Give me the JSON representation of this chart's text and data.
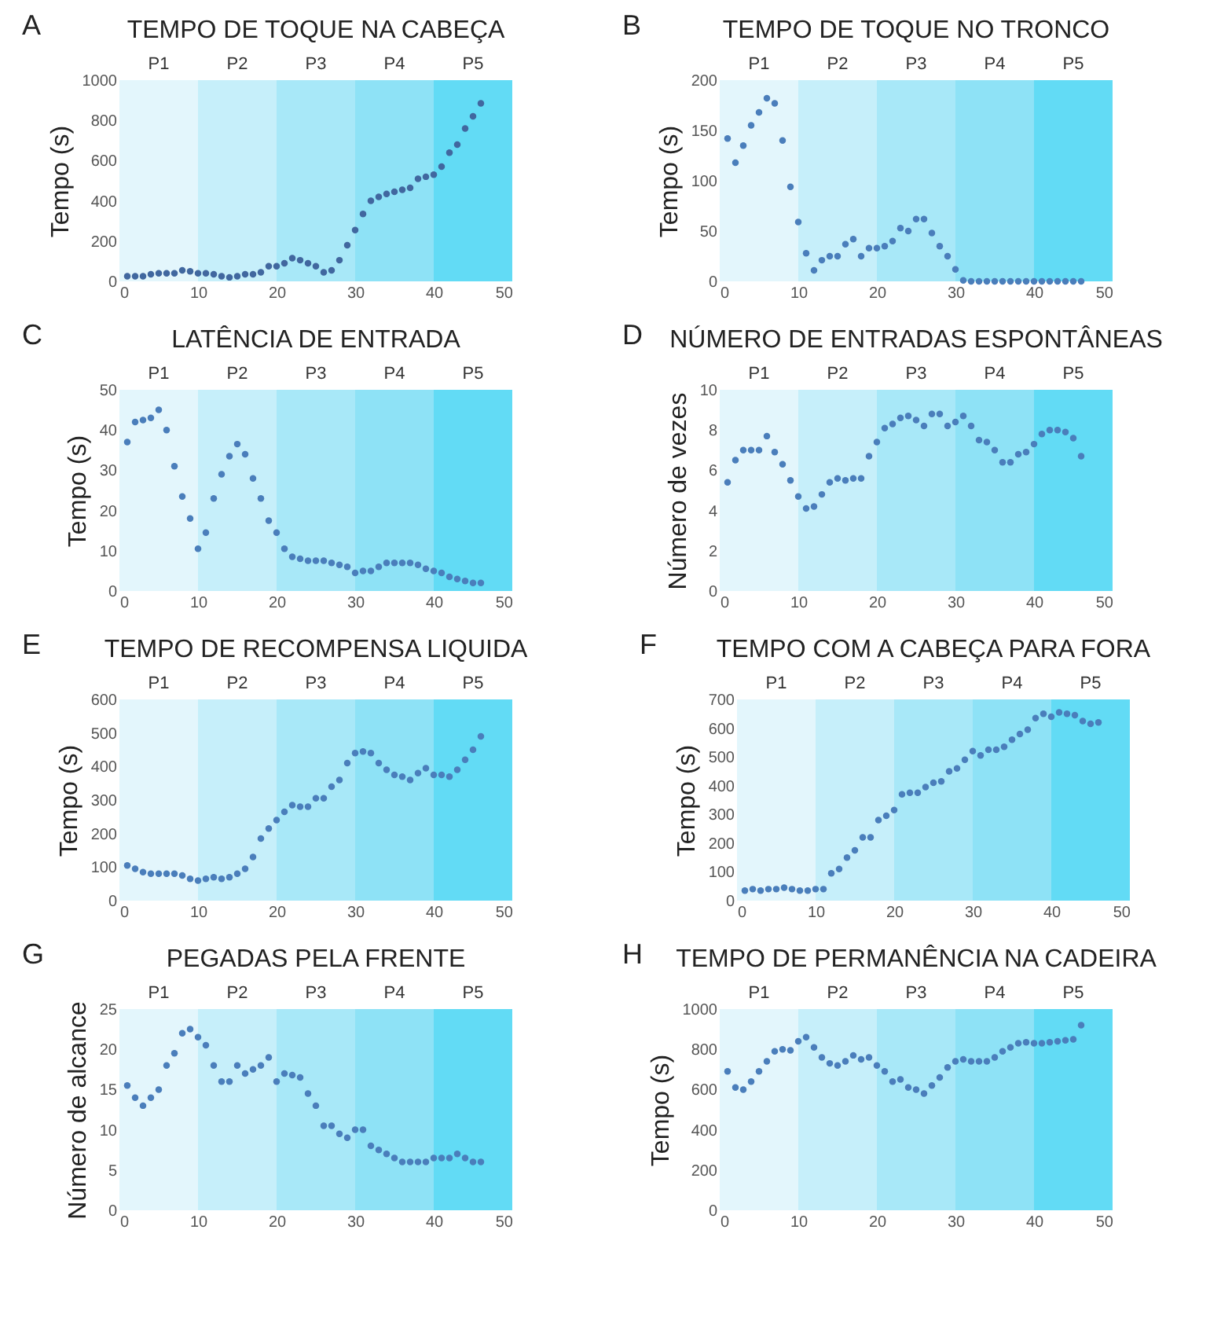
{
  "chart_data": [
    {
      "type": "scatter",
      "title": "TEMPO DE TOQUE NA CABEÇA",
      "ylabel": "Tempo (s)",
      "annotations": [
        "A"
      ],
      "marker": "circle",
      "x": [
        1,
        2,
        3,
        4,
        5,
        6,
        7,
        8,
        9,
        10,
        11,
        12,
        13,
        14,
        15,
        16,
        17,
        18,
        19,
        20,
        21,
        22,
        23,
        24,
        25,
        26,
        27,
        28,
        29,
        30,
        31,
        32,
        33,
        34,
        35,
        36,
        37,
        38,
        39,
        40,
        41,
        42,
        43,
        44,
        45,
        46
      ],
      "series": [
        {
          "color": "#41679f",
          "values": [
            25,
            25,
            25,
            35,
            40,
            40,
            40,
            55,
            50,
            40,
            40,
            35,
            25,
            20,
            25,
            35,
            35,
            45,
            75,
            75,
            90,
            115,
            105,
            90,
            75,
            45,
            55,
            105,
            180,
            255,
            335,
            400,
            420,
            435,
            445,
            455,
            465,
            510,
            520,
            530,
            570,
            640,
            680,
            760,
            820,
            885
          ]
        }
      ],
      "xlim": [
        0,
        50
      ],
      "xticks": [
        0,
        10,
        20,
        30,
        40,
        50
      ],
      "ylim": [
        0,
        1000
      ],
      "yticks": [
        0,
        200,
        400,
        600,
        800,
        1000
      ],
      "bands": [
        {
          "axis": "x",
          "from": 0,
          "to": 10,
          "label": "P1",
          "color": "#e3f6fc"
        },
        {
          "axis": "x",
          "from": 10,
          "to": 20,
          "label": "P2",
          "color": "#c6effa"
        },
        {
          "axis": "x",
          "from": 20,
          "to": 30,
          "label": "P3",
          "color": "#a8e8f8"
        },
        {
          "axis": "x",
          "from": 30,
          "to": 40,
          "label": "P4",
          "color": "#8ee2f6"
        },
        {
          "axis": "x",
          "from": 40,
          "to": 50,
          "label": "P5",
          "color": "#62dbf5"
        }
      ]
    },
    {
      "type": "scatter",
      "title": "TEMPO DE TOQUE NO TRONCO",
      "ylabel": "Tempo (s)",
      "annotations": [
        "B"
      ],
      "marker": "circle",
      "x": [
        1,
        2,
        3,
        4,
        5,
        6,
        7,
        8,
        9,
        10,
        11,
        12,
        13,
        14,
        15,
        16,
        17,
        18,
        19,
        20,
        21,
        22,
        23,
        24,
        25,
        26,
        27,
        28,
        29,
        30,
        31,
        32,
        33,
        34,
        35,
        36,
        37,
        38,
        39,
        40,
        41,
        42,
        43,
        44,
        45,
        46
      ],
      "series": [
        {
          "color": "#4a7ebb",
          "values": [
            142,
            118,
            135,
            155,
            168,
            182,
            177,
            140,
            94,
            59,
            28,
            11,
            21,
            25,
            25,
            37,
            42,
            25,
            33,
            33,
            35,
            40,
            53,
            50,
            62,
            62,
            48,
            35,
            25,
            12,
            1,
            0,
            0,
            0,
            0,
            0,
            0,
            0,
            0,
            0,
            0,
            0,
            0,
            0,
            0,
            0
          ]
        }
      ],
      "xlim": [
        0,
        50
      ],
      "xticks": [
        0,
        10,
        20,
        30,
        40,
        50
      ],
      "ylim": [
        0,
        200
      ],
      "yticks": [
        0,
        50,
        100,
        150,
        200
      ],
      "bands": [
        {
          "axis": "x",
          "from": 0,
          "to": 10,
          "label": "P1",
          "color": "#e3f6fc"
        },
        {
          "axis": "x",
          "from": 10,
          "to": 20,
          "label": "P2",
          "color": "#c6effa"
        },
        {
          "axis": "x",
          "from": 20,
          "to": 30,
          "label": "P3",
          "color": "#a8e8f8"
        },
        {
          "axis": "x",
          "from": 30,
          "to": 40,
          "label": "P4",
          "color": "#8ee2f6"
        },
        {
          "axis": "x",
          "from": 40,
          "to": 50,
          "label": "P5",
          "color": "#62dbf5"
        }
      ]
    },
    {
      "type": "scatter",
      "title": "LATÊNCIA DE ENTRADA",
      "ylabel": "Tempo (s)",
      "annotations": [
        "C"
      ],
      "marker": "circle",
      "x": [
        1,
        2,
        3,
        4,
        5,
        6,
        7,
        8,
        9,
        10,
        11,
        12,
        13,
        14,
        15,
        16,
        17,
        18,
        19,
        20,
        21,
        22,
        23,
        24,
        25,
        26,
        27,
        28,
        29,
        30,
        31,
        32,
        33,
        34,
        35,
        36,
        37,
        38,
        39,
        40,
        41,
        42,
        43,
        44,
        45,
        46
      ],
      "series": [
        {
          "color": "#4a7ebb",
          "values": [
            37,
            42,
            42.5,
            43,
            45,
            40,
            31,
            23.5,
            18,
            10.5,
            14.5,
            23,
            29,
            33.5,
            36.5,
            34,
            28,
            23,
            17.5,
            14.5,
            10.5,
            8.5,
            8,
            7.5,
            7.5,
            7.5,
            7,
            6.5,
            6,
            4.5,
            5,
            5,
            6,
            7,
            7,
            7,
            7,
            6.5,
            5.5,
            5,
            4.5,
            3.5,
            3,
            2.5,
            2,
            2
          ]
        }
      ],
      "xlim": [
        0,
        50
      ],
      "xticks": [
        0,
        10,
        20,
        30,
        40,
        50
      ],
      "ylim": [
        0,
        50
      ],
      "yticks": [
        0,
        10,
        20,
        30,
        40,
        50
      ],
      "bands": [
        {
          "axis": "x",
          "from": 0,
          "to": 10,
          "label": "P1",
          "color": "#e3f6fc"
        },
        {
          "axis": "x",
          "from": 10,
          "to": 20,
          "label": "P2",
          "color": "#c6effa"
        },
        {
          "axis": "x",
          "from": 20,
          "to": 30,
          "label": "P3",
          "color": "#a8e8f8"
        },
        {
          "axis": "x",
          "from": 30,
          "to": 40,
          "label": "P4",
          "color": "#8ee2f6"
        },
        {
          "axis": "x",
          "from": 40,
          "to": 50,
          "label": "P5",
          "color": "#62dbf5"
        }
      ]
    },
    {
      "type": "scatter",
      "title": "NÚMERO DE ENTRADAS ESPONTÂNEAS",
      "ylabel": "Número de vezes",
      "annotations": [
        "D"
      ],
      "marker": "circle",
      "x": [
        1,
        2,
        3,
        4,
        5,
        6,
        7,
        8,
        9,
        10,
        11,
        12,
        13,
        14,
        15,
        16,
        17,
        18,
        19,
        20,
        21,
        22,
        23,
        24,
        25,
        26,
        27,
        28,
        29,
        30,
        31,
        32,
        33,
        34,
        35,
        36,
        37,
        38,
        39,
        40,
        41,
        42,
        43,
        44,
        45,
        46
      ],
      "series": [
        {
          "color": "#4a7ebb",
          "values": [
            5.4,
            6.5,
            7,
            7,
            7,
            7.7,
            6.9,
            6.3,
            5.5,
            4.7,
            4.1,
            4.2,
            4.8,
            5.4,
            5.6,
            5.5,
            5.6,
            5.6,
            6.7,
            7.4,
            8.1,
            8.3,
            8.6,
            8.7,
            8.5,
            8.2,
            8.8,
            8.8,
            8.2,
            8.4,
            8.7,
            8.2,
            7.5,
            7.4,
            7,
            6.4,
            6.4,
            6.8,
            6.9,
            7.3,
            7.8,
            8,
            8,
            7.9,
            7.6,
            6.7
          ]
        }
      ],
      "xlim": [
        0,
        50
      ],
      "xticks": [
        0,
        10,
        20,
        30,
        40,
        50
      ],
      "ylim": [
        0,
        10
      ],
      "yticks": [
        0,
        2,
        4,
        6,
        8,
        10
      ],
      "bands": [
        {
          "axis": "x",
          "from": 0,
          "to": 10,
          "label": "P1",
          "color": "#e3f6fc"
        },
        {
          "axis": "x",
          "from": 10,
          "to": 20,
          "label": "P2",
          "color": "#c6effa"
        },
        {
          "axis": "x",
          "from": 20,
          "to": 30,
          "label": "P3",
          "color": "#a8e8f8"
        },
        {
          "axis": "x",
          "from": 30,
          "to": 40,
          "label": "P4",
          "color": "#8ee2f6"
        },
        {
          "axis": "x",
          "from": 40,
          "to": 50,
          "label": "P5",
          "color": "#62dbf5"
        }
      ]
    },
    {
      "type": "scatter",
      "title": "TEMPO DE RECOMPENSA LIQUIDA",
      "ylabel": "Tempo (s)",
      "annotations": [
        "E"
      ],
      "marker": "circle",
      "x": [
        1,
        2,
        3,
        4,
        5,
        6,
        7,
        8,
        9,
        10,
        11,
        12,
        13,
        14,
        15,
        16,
        17,
        18,
        19,
        20,
        21,
        22,
        23,
        24,
        25,
        26,
        27,
        28,
        29,
        30,
        31,
        32,
        33,
        34,
        35,
        36,
        37,
        38,
        39,
        40,
        41,
        42,
        43,
        44,
        45,
        46
      ],
      "series": [
        {
          "color": "#4a7ebb",
          "values": [
            105,
            95,
            85,
            80,
            80,
            80,
            80,
            75,
            65,
            60,
            65,
            70,
            65,
            70,
            80,
            95,
            130,
            185,
            215,
            240,
            265,
            285,
            280,
            280,
            305,
            305,
            340,
            360,
            410,
            440,
            445,
            440,
            410,
            390,
            375,
            370,
            360,
            380,
            395,
            375,
            375,
            370,
            390,
            420,
            450,
            490
          ]
        }
      ],
      "xlim": [
        0,
        50
      ],
      "xticks": [
        0,
        10,
        20,
        30,
        40,
        50
      ],
      "ylim": [
        0,
        600
      ],
      "yticks": [
        0,
        100,
        200,
        300,
        400,
        500,
        600
      ],
      "bands": [
        {
          "axis": "x",
          "from": 0,
          "to": 10,
          "label": "P1",
          "color": "#e3f6fc"
        },
        {
          "axis": "x",
          "from": 10,
          "to": 20,
          "label": "P2",
          "color": "#c6effa"
        },
        {
          "axis": "x",
          "from": 20,
          "to": 30,
          "label": "P3",
          "color": "#a8e8f8"
        },
        {
          "axis": "x",
          "from": 30,
          "to": 40,
          "label": "P4",
          "color": "#8ee2f6"
        },
        {
          "axis": "x",
          "from": 40,
          "to": 50,
          "label": "P5",
          "color": "#62dbf5"
        }
      ]
    },
    {
      "type": "scatter",
      "title": "TEMPO COM A CABEÇA PARA FORA",
      "ylabel": "Tempo (s)",
      "annotations": [
        "F"
      ],
      "marker": "circle",
      "x": [
        1,
        2,
        3,
        4,
        5,
        6,
        7,
        8,
        9,
        10,
        11,
        12,
        13,
        14,
        15,
        16,
        17,
        18,
        19,
        20,
        21,
        22,
        23,
        24,
        25,
        26,
        27,
        28,
        29,
        30,
        31,
        32,
        33,
        34,
        35,
        36,
        37,
        38,
        39,
        40,
        41,
        42,
        43,
        44,
        45,
        46
      ],
      "series": [
        {
          "color": "#4a7ebb",
          "values": [
            35,
            40,
            35,
            40,
            40,
            45,
            40,
            35,
            35,
            40,
            40,
            95,
            110,
            150,
            175,
            220,
            220,
            280,
            295,
            315,
            370,
            375,
            375,
            395,
            410,
            415,
            450,
            460,
            490,
            520,
            505,
            525,
            525,
            535,
            560,
            580,
            595,
            635,
            650,
            640,
            655,
            650,
            645,
            625,
            615,
            620
          ]
        }
      ],
      "xlim": [
        0,
        50
      ],
      "xticks": [
        0,
        10,
        20,
        30,
        40,
        50
      ],
      "ylim": [
        0,
        700
      ],
      "yticks": [
        0,
        100,
        200,
        300,
        400,
        500,
        600,
        700
      ],
      "bands": [
        {
          "axis": "x",
          "from": 0,
          "to": 10,
          "label": "P1",
          "color": "#e3f6fc"
        },
        {
          "axis": "x",
          "from": 10,
          "to": 20,
          "label": "P2",
          "color": "#c6effa"
        },
        {
          "axis": "x",
          "from": 20,
          "to": 30,
          "label": "P3",
          "color": "#a8e8f8"
        },
        {
          "axis": "x",
          "from": 30,
          "to": 40,
          "label": "P4",
          "color": "#8ee2f6"
        },
        {
          "axis": "x",
          "from": 40,
          "to": 50,
          "label": "P5",
          "color": "#62dbf5"
        }
      ]
    },
    {
      "type": "scatter",
      "title": "PEGADAS PELA FRENTE",
      "ylabel": "Número de alcance",
      "annotations": [
        "G"
      ],
      "marker": "circle",
      "x": [
        1,
        2,
        3,
        4,
        5,
        6,
        7,
        8,
        9,
        10,
        11,
        12,
        13,
        14,
        15,
        16,
        17,
        18,
        19,
        20,
        21,
        22,
        23,
        24,
        25,
        26,
        27,
        28,
        29,
        30,
        31,
        32,
        33,
        34,
        35,
        36,
        37,
        38,
        39,
        40,
        41,
        42,
        43,
        44,
        45,
        46
      ],
      "series": [
        {
          "color": "#4a7ebb",
          "values": [
            15.5,
            14,
            13,
            14,
            15,
            18,
            19.5,
            22,
            22.5,
            21.5,
            20.5,
            18,
            16,
            16,
            18,
            17,
            17.5,
            18,
            19,
            16,
            17,
            16.8,
            16.5,
            14.5,
            13,
            10.5,
            10.5,
            9.5,
            9,
            10,
            10,
            8,
            7.5,
            7,
            6.5,
            6,
            6,
            6,
            6,
            6.5,
            6.5,
            6.5,
            7,
            6.5,
            6,
            6
          ]
        }
      ],
      "xlim": [
        0,
        50
      ],
      "xticks": [
        0,
        10,
        20,
        30,
        40,
        50
      ],
      "ylim": [
        0,
        25
      ],
      "yticks": [
        0,
        5,
        10,
        15,
        20,
        25
      ],
      "bands": [
        {
          "axis": "x",
          "from": 0,
          "to": 10,
          "label": "P1",
          "color": "#e3f6fc"
        },
        {
          "axis": "x",
          "from": 10,
          "to": 20,
          "label": "P2",
          "color": "#c6effa"
        },
        {
          "axis": "x",
          "from": 20,
          "to": 30,
          "label": "P3",
          "color": "#a8e8f8"
        },
        {
          "axis": "x",
          "from": 30,
          "to": 40,
          "label": "P4",
          "color": "#8ee2f6"
        },
        {
          "axis": "x",
          "from": 40,
          "to": 50,
          "label": "P5",
          "color": "#62dbf5"
        }
      ]
    },
    {
      "type": "scatter",
      "title": "TEMPO DE PERMANÊNCIA NA CADEIRA",
      "ylabel": "Tempo (s)",
      "annotations": [
        "H"
      ],
      "marker": "circle",
      "x": [
        1,
        2,
        3,
        4,
        5,
        6,
        7,
        8,
        9,
        10,
        11,
        12,
        13,
        14,
        15,
        16,
        17,
        18,
        19,
        20,
        21,
        22,
        23,
        24,
        25,
        26,
        27,
        28,
        29,
        30,
        31,
        32,
        33,
        34,
        35,
        36,
        37,
        38,
        39,
        40,
        41,
        42,
        43,
        44,
        45,
        46
      ],
      "series": [
        {
          "color": "#4a7ebb",
          "values": [
            690,
            610,
            600,
            640,
            690,
            740,
            790,
            800,
            795,
            840,
            860,
            810,
            760,
            730,
            720,
            740,
            770,
            750,
            760,
            720,
            690,
            640,
            650,
            610,
            600,
            580,
            620,
            660,
            710,
            740,
            750,
            740,
            740,
            740,
            760,
            790,
            810,
            830,
            835,
            830,
            830,
            835,
            840,
            845,
            850,
            920
          ]
        }
      ],
      "xlim": [
        0,
        50
      ],
      "xticks": [
        0,
        10,
        20,
        30,
        40,
        50
      ],
      "ylim": [
        0,
        1000
      ],
      "yticks": [
        0,
        200,
        400,
        600,
        800,
        1000
      ],
      "bands": [
        {
          "axis": "x",
          "from": 0,
          "to": 10,
          "label": "P1",
          "color": "#e3f6fc"
        },
        {
          "axis": "x",
          "from": 10,
          "to": 20,
          "label": "P2",
          "color": "#c6effa"
        },
        {
          "axis": "x",
          "from": 20,
          "to": 30,
          "label": "P3",
          "color": "#a8e8f8"
        },
        {
          "axis": "x",
          "from": 30,
          "to": 40,
          "label": "P4",
          "color": "#8ee2f6"
        },
        {
          "axis": "x",
          "from": 40,
          "to": 50,
          "label": "P5",
          "color": "#62dbf5"
        }
      ]
    }
  ]
}
